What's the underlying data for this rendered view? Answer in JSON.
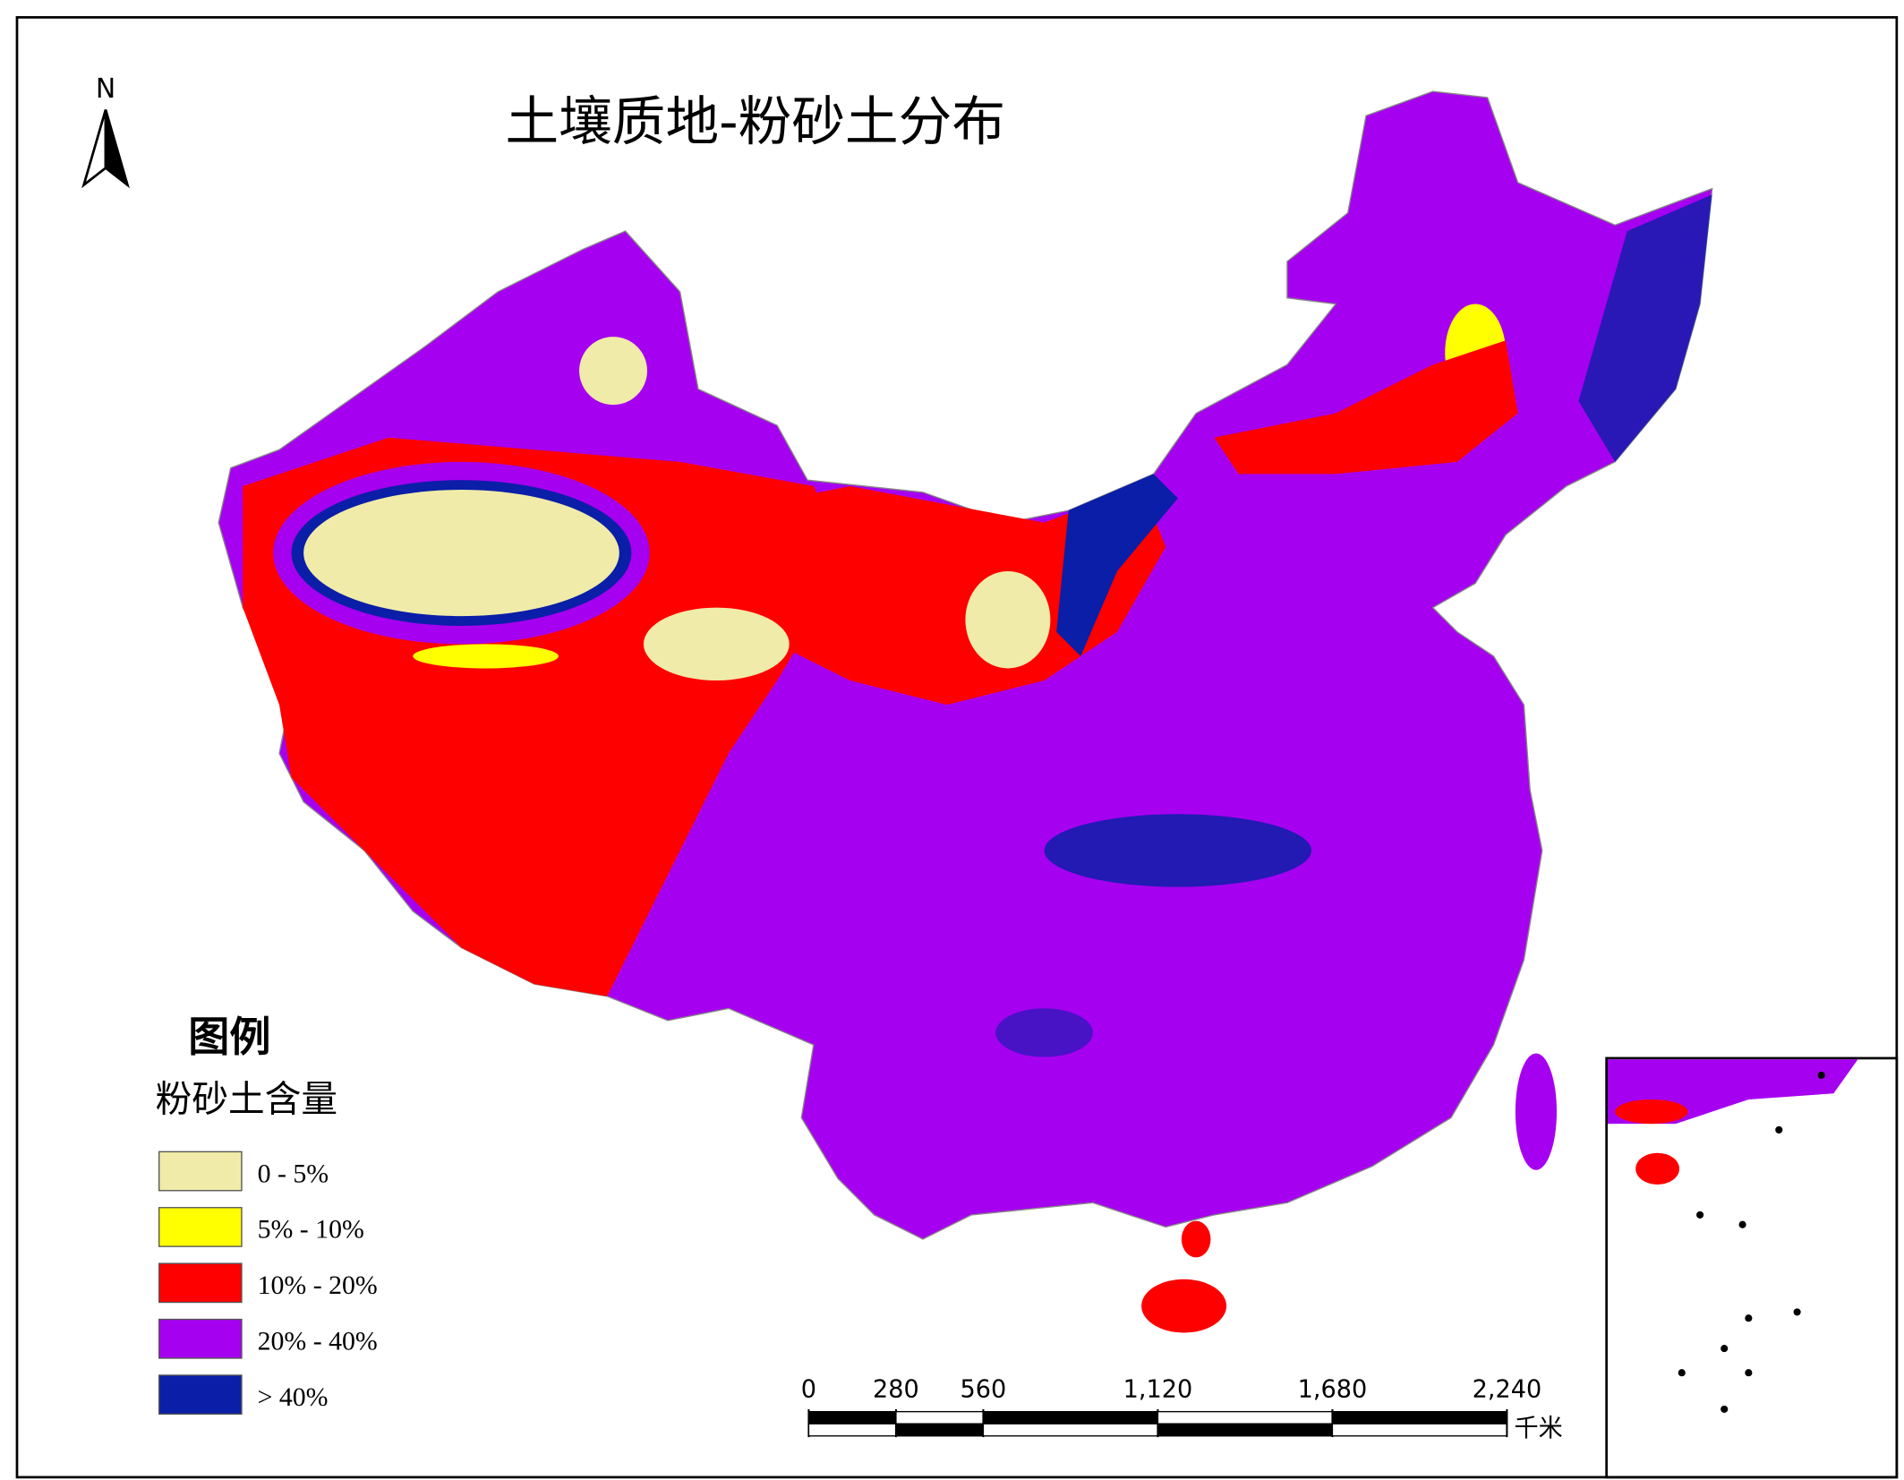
{
  "title": "土壤质地-粉砂土分布",
  "north": "N",
  "legend": {
    "heading": "图例",
    "title": "粉砂土含量",
    "items": [
      {
        "label": "0 - 5%",
        "color": "#f0eba8"
      },
      {
        "label": "5% - 10%",
        "color": "#ffff00"
      },
      {
        "label": "10% - 20%",
        "color": "#ff0000"
      },
      {
        "label": "20% - 40%",
        "color": "#a600f0"
      },
      {
        "label": "> 40%",
        "color": "#0a1ea8"
      }
    ]
  },
  "scale_bar": {
    "ticks": [
      0,
      280,
      560,
      {
        "value": 1120,
        "label": "1,120"
      },
      {
        "value": 1680,
        "label": "1,680"
      },
      {
        "value": 2240,
        "label": "2,240"
      }
    ],
    "unit": "千米"
  }
}
